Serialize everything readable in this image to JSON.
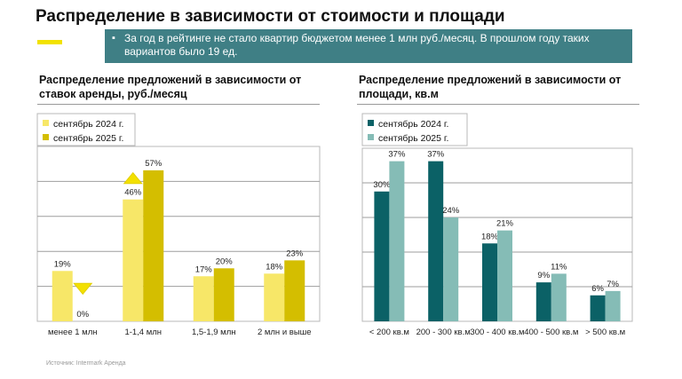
{
  "title": "Распределение в зависимости от стоимости и площади",
  "note": "За год в рейтинге не стало квартир бюджетом менее 1 млн руб./месяц. В прошлом году таких вариантов было 19 ед.",
  "note_bullet": "▪",
  "source": "Источник: Intermark Аренда",
  "colors": {
    "left_2024": "#f7e768",
    "left_2025": "#d4be00",
    "right_2024": "#0b6166",
    "right_2025": "#85bcb6",
    "note_bg": "#3f7f85",
    "accent": "#f2e200"
  },
  "chart_data": [
    {
      "type": "bar",
      "title": "Распределение предложений в зависимости от ставок аренды, руб./месяц",
      "title_lines": [
        "Распределение предложений в зависимости от",
        "ставок аренды, руб./месяц"
      ],
      "categories": [
        "менее 1 млн",
        "1-1,4 млн",
        "1,5-1,9 млн",
        "2 млн и выше"
      ],
      "series": [
        {
          "name": "сентябрь 2024 г.",
          "values": [
            19,
            46,
            17,
            18
          ],
          "labels": [
            "19%",
            "46%",
            "17%",
            "18%"
          ]
        },
        {
          "name": "сентябрь 2025 г.",
          "values": [
            0,
            57,
            20,
            23
          ],
          "labels": [
            "0%",
            "57%",
            "20%",
            "23%"
          ]
        }
      ],
      "ylim": [
        0,
        66
      ],
      "markers": [
        {
          "category_index": 0,
          "direction": "down"
        },
        {
          "category_index": 1,
          "direction": "up"
        }
      ],
      "legend": "top-left",
      "grid": true
    },
    {
      "type": "bar",
      "title": "Распределение предложений в зависимости от площади, кв.м",
      "title_lines": [
        "Распределение предложений в зависимости от",
        "площади, кв.м"
      ],
      "categories": [
        "< 200 кв.м",
        "200 - 300 кв.м",
        "300 - 400 кв.м",
        "400 - 500 кв.м",
        "> 500 кв.м"
      ],
      "series": [
        {
          "name": "сентябрь 2024 г.",
          "values": [
            30,
            37,
            18,
            9,
            6
          ],
          "labels": [
            "30%",
            "37%",
            "18%",
            "9%",
            "6%"
          ]
        },
        {
          "name": "сентябрь 2025 г.",
          "values": [
            37,
            24,
            21,
            11,
            7
          ],
          "labels": [
            "37%",
            "24%",
            "21%",
            "11%",
            "7%"
          ]
        }
      ],
      "ylim": [
        0,
        40
      ],
      "legend": "top-left",
      "grid": true
    }
  ]
}
